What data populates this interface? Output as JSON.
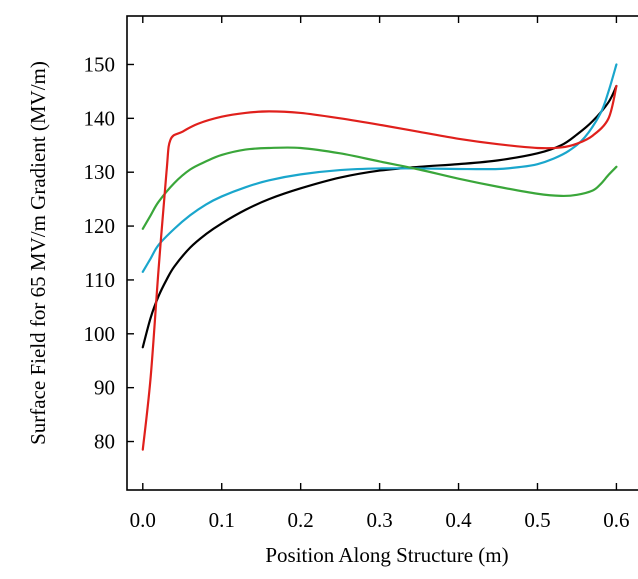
{
  "chart_data": {
    "type": "line",
    "xlabel": "Position Along Structure (m)",
    "ylabel": "Surface Field for 65 MV/m Gradient (MV/m)",
    "xlim": [
      -0.02,
      0.64
    ],
    "ylim": [
      71,
      159
    ],
    "x_ticks": [
      0.0,
      0.1,
      0.2,
      0.3,
      0.4,
      0.5,
      0.6
    ],
    "x_tick_labels": [
      "0.0",
      "0.1",
      "0.2",
      "0.3",
      "0.4",
      "0.5",
      "0.6"
    ],
    "y_ticks": [
      80,
      90,
      100,
      110,
      120,
      130,
      140,
      150
    ],
    "y_tick_labels": [
      "80",
      "90",
      "100",
      "110",
      "120",
      "130",
      "140",
      "150"
    ],
    "grid": false,
    "legend": "none",
    "series": [
      {
        "color": "#000000",
        "x": [
          0.0,
          0.01,
          0.02,
          0.03,
          0.04,
          0.06,
          0.08,
          0.1,
          0.13,
          0.16,
          0.2,
          0.25,
          0.3,
          0.35,
          0.4,
          0.45,
          0.5,
          0.53,
          0.55,
          0.57,
          0.59,
          0.6
        ],
        "y": [
          97.5,
          103,
          107,
          110,
          112.5,
          116,
          118.5,
          120.5,
          123,
          125,
          127,
          129,
          130.3,
          131,
          131.5,
          132.2,
          133.5,
          135,
          137,
          139.5,
          143,
          146
        ]
      },
      {
        "color": "#1aa6cc",
        "x": [
          0.0,
          0.01,
          0.02,
          0.04,
          0.06,
          0.08,
          0.1,
          0.13,
          0.16,
          0.2,
          0.25,
          0.3,
          0.35,
          0.4,
          0.45,
          0.48,
          0.5,
          0.52,
          0.54,
          0.56,
          0.58,
          0.59,
          0.6
        ],
        "y": [
          111.5,
          114,
          116.5,
          119.5,
          122,
          124,
          125.5,
          127.2,
          128.5,
          129.6,
          130.4,
          130.7,
          130.7,
          130.6,
          130.6,
          131,
          131.5,
          132.5,
          134,
          136.5,
          141,
          145,
          150
        ]
      },
      {
        "color": "#3aa63a",
        "x": [
          0.0,
          0.01,
          0.02,
          0.04,
          0.06,
          0.08,
          0.1,
          0.13,
          0.16,
          0.2,
          0.25,
          0.3,
          0.35,
          0.4,
          0.45,
          0.5,
          0.53,
          0.55,
          0.57,
          0.58,
          0.59,
          0.6
        ],
        "y": [
          119.5,
          122,
          124.5,
          128,
          130.5,
          132,
          133.2,
          134.2,
          134.5,
          134.5,
          133.5,
          132,
          130.5,
          128.8,
          127.3,
          126,
          125.6,
          125.8,
          126.6,
          127.8,
          129.5,
          131
        ]
      },
      {
        "color": "#e0201c",
        "x": [
          0.0,
          0.01,
          0.02,
          0.03,
          0.035,
          0.05,
          0.07,
          0.1,
          0.13,
          0.16,
          0.2,
          0.25,
          0.3,
          0.35,
          0.4,
          0.45,
          0.5,
          0.53,
          0.55,
          0.57,
          0.59,
          0.6
        ],
        "y": [
          78.5,
          92,
          112,
          130,
          136,
          137.5,
          139,
          140.3,
          141,
          141.3,
          141,
          140,
          138.8,
          137.5,
          136.2,
          135.2,
          134.5,
          134.6,
          135.3,
          136.8,
          140,
          146
        ]
      }
    ]
  }
}
